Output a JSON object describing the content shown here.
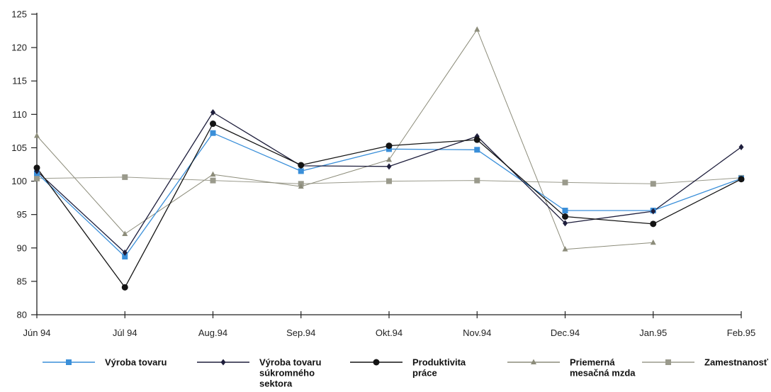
{
  "chart_data": {
    "type": "line",
    "categories": [
      "Jún 94",
      "Júl 94",
      "Aug.94",
      "Sep.94",
      "Okt.94",
      "Nov.94",
      "Dec.94",
      "Jan.95",
      "Feb.95"
    ],
    "yticks": [
      "80",
      "85",
      "90",
      "95",
      "100",
      "105",
      "110",
      "115",
      "120",
      "125"
    ],
    "ylim": [
      80,
      125
    ],
    "grid": false,
    "legend_position": "bottom",
    "series": [
      {
        "name": "Výroba tovaru",
        "legend_lines": [
          "Výroba tovaru"
        ],
        "color": "#3a8fd9",
        "marker": "square",
        "values": [
          101.2,
          88.7,
          107.2,
          101.5,
          104.8,
          104.7,
          95.6,
          95.6,
          100.4
        ]
      },
      {
        "name": "Výroba tovaru súkromného sektora",
        "legend_lines": [
          "Výroba tovaru",
          "súkromného",
          "sektora"
        ],
        "color": "#1e1e3c",
        "marker": "diamond",
        "values": [
          101.5,
          89.3,
          110.3,
          102.3,
          102.2,
          106.7,
          93.7,
          95.5,
          105.1
        ]
      },
      {
        "name": "Produktivita práce",
        "legend_lines": [
          "Produktivita",
          "práce"
        ],
        "color": "#141414",
        "marker": "circle",
        "values": [
          102.0,
          84.1,
          108.6,
          102.4,
          105.3,
          106.2,
          94.7,
          93.6,
          100.3
        ]
      },
      {
        "name": "Priemerná mesačná mzda",
        "legend_lines": [
          "Priemerná",
          "mesačná mzda"
        ],
        "color": "#8c8c7a",
        "marker": "triangle",
        "values": [
          106.8,
          92.1,
          101.0,
          99.2,
          103.2,
          122.7,
          89.8,
          90.8,
          null
        ]
      },
      {
        "name": "Zamestnanosť",
        "legend_lines": [
          "Zamestnanosť"
        ],
        "color": "#9a9a8c",
        "marker": "square",
        "values": [
          100.4,
          100.6,
          100.1,
          99.6,
          100.0,
          100.1,
          99.8,
          99.6,
          100.5
        ]
      }
    ]
  }
}
